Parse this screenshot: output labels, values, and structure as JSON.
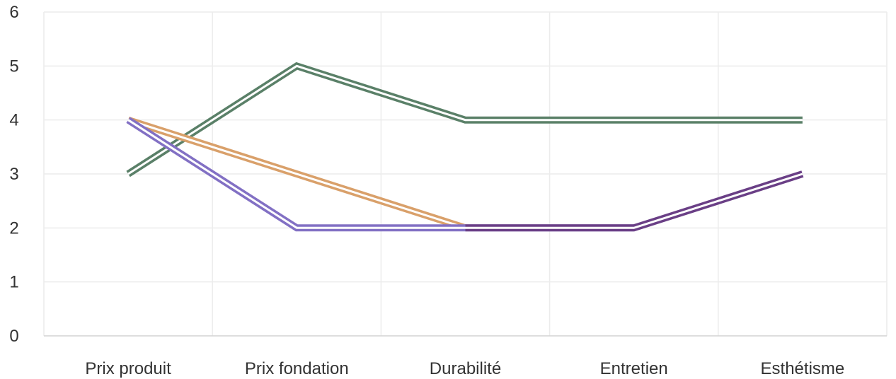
{
  "chart_data": {
    "type": "line",
    "categories": [
      "Prix produit",
      "Prix fondation",
      "Durabilité",
      "Entretien",
      "Esthétisme"
    ],
    "ylim": [
      0,
      6
    ],
    "yticks": [
      0,
      1,
      2,
      3,
      4,
      5,
      6
    ],
    "grid": true,
    "legend": "none",
    "series": [
      {
        "color": "#5a8068",
        "values": [
          3,
          5,
          4,
          4,
          4
        ]
      },
      {
        "color": "#d9a06a",
        "values": [
          4,
          3,
          2,
          null,
          null
        ]
      },
      {
        "color": "#8270c4",
        "values": [
          4,
          2,
          2,
          2,
          null
        ]
      },
      {
        "color": "#6a3f86",
        "values": [
          null,
          null,
          2,
          2,
          3
        ]
      }
    ],
    "title": "",
    "xlabel": "",
    "ylabel": ""
  }
}
